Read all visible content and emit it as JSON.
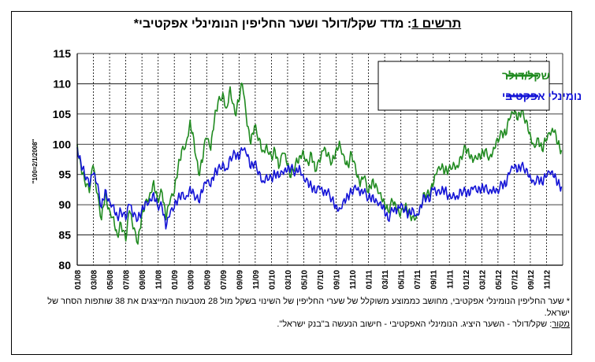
{
  "chart_data": {
    "type": "line",
    "title_prefix": "תרשים 1",
    "title": ": מדד שקל/דולר ושער החליפין הנומינלי אפקטיבי*",
    "ylabel": "\"100=2/1/2008\"",
    "ylim": [
      80,
      115
    ],
    "yticks": [
      80,
      85,
      90,
      95,
      100,
      105,
      110,
      115
    ],
    "x_tick_labels": [
      "01/08",
      "03/08",
      "05/08",
      "07/08",
      "09/08",
      "11/08",
      "01/09",
      "03/09",
      "05/09",
      "07/09",
      "09/09",
      "11/09",
      "01/10",
      "03/10",
      "05/10",
      "07/10",
      "09/10",
      "11/10",
      "01/11",
      "03/11",
      "05/11",
      "07/11",
      "09/11",
      "11/11",
      "01/12",
      "03/12",
      "05/12",
      "07/12",
      "09/12",
      "11/12"
    ],
    "x_period": [
      "01/08",
      "12/12"
    ],
    "grid": {
      "vertical": "dashed",
      "horizontal": "solid"
    },
    "legend_position": "top-right",
    "series": [
      {
        "name": "שקל/דולר",
        "color": "#1f8a1f",
        "points": [
          [
            0,
            100
          ],
          [
            0.3,
            96.5
          ],
          [
            0.6,
            94
          ],
          [
            1,
            92
          ],
          [
            1.3,
            96.5
          ],
          [
            1.6,
            92
          ],
          [
            2,
            87.5
          ],
          [
            2.3,
            92
          ],
          [
            2.6,
            89.5
          ],
          [
            3,
            88
          ],
          [
            3.3,
            85
          ],
          [
            3.6,
            87
          ],
          [
            4,
            84
          ],
          [
            4.3,
            89
          ],
          [
            4.6,
            86
          ],
          [
            5,
            83.5
          ],
          [
            5.3,
            88
          ],
          [
            5.6,
            90.5
          ],
          [
            6,
            92
          ],
          [
            6.3,
            94
          ],
          [
            6.6,
            91
          ],
          [
            7,
            92
          ],
          [
            7.3,
            87.5
          ],
          [
            7.6,
            90
          ],
          [
            8,
            92
          ],
          [
            8.3,
            96
          ],
          [
            8.6,
            99
          ],
          [
            9,
            100.5
          ],
          [
            9.3,
            104
          ],
          [
            9.6,
            101
          ],
          [
            10,
            95
          ],
          [
            10.3,
            97
          ],
          [
            10.6,
            101
          ],
          [
            11,
            99
          ],
          [
            11.3,
            104
          ],
          [
            11.6,
            107
          ],
          [
            12,
            108.5
          ],
          [
            12.3,
            106
          ],
          [
            12.6,
            109.5
          ],
          [
            13,
            105
          ],
          [
            13.3,
            107
          ],
          [
            13.6,
            110
          ],
          [
            14,
            103
          ],
          [
            14.3,
            100
          ],
          [
            14.6,
            103
          ],
          [
            15,
            101
          ],
          [
            15.3,
            99
          ],
          [
            15.6,
            100
          ],
          [
            16,
            98
          ],
          [
            16.3,
            99
          ],
          [
            16.6,
            96
          ],
          [
            17,
            98.5
          ],
          [
            17.3,
            96.5
          ],
          [
            17.6,
            94.5
          ],
          [
            18,
            97
          ],
          [
            18.3,
            98
          ],
          [
            18.6,
            99
          ],
          [
            19,
            97
          ],
          [
            19.3,
            98.5
          ],
          [
            19.6,
            95.5
          ],
          [
            20,
            97
          ],
          [
            20.3,
            99
          ],
          [
            20.6,
            98
          ],
          [
            21,
            97
          ],
          [
            21.3,
            99
          ],
          [
            21.6,
            100.5
          ],
          [
            22,
            98
          ],
          [
            22.3,
            96.5
          ],
          [
            22.6,
            98.5
          ],
          [
            23,
            95
          ],
          [
            23.3,
            93
          ],
          [
            23.6,
            94.5
          ],
          [
            24,
            92
          ],
          [
            24.3,
            94
          ],
          [
            24.6,
            93.5
          ],
          [
            25,
            92
          ],
          [
            25.3,
            90.5
          ],
          [
            25.6,
            89
          ],
          [
            26,
            90.5
          ],
          [
            26.3,
            89
          ],
          [
            26.6,
            88
          ],
          [
            27,
            89.5
          ],
          [
            27.3,
            89
          ],
          [
            27.6,
            88
          ],
          [
            28,
            88.5
          ],
          [
            28.3,
            90
          ],
          [
            28.6,
            92
          ],
          [
            29,
            91.5
          ],
          [
            29.3,
            93
          ],
          [
            29.6,
            95
          ],
          [
            30,
            96
          ],
          [
            30.3,
            95.5
          ],
          [
            30.6,
            96
          ],
          [
            31,
            97
          ],
          [
            31.3,
            96.5
          ],
          [
            31.6,
            98
          ],
          [
            32,
            99.5
          ],
          [
            32.3,
            98
          ],
          [
            32.6,
            97
          ],
          [
            33,
            97.5
          ],
          [
            33.3,
            98
          ],
          [
            33.6,
            99
          ],
          [
            34,
            98
          ],
          [
            34.3,
            99.5
          ],
          [
            34.6,
            101
          ],
          [
            35,
            102
          ],
          [
            35.3,
            101.5
          ],
          [
            35.6,
            104
          ],
          [
            36,
            105
          ],
          [
            36.3,
            104
          ],
          [
            36.6,
            105.5
          ],
          [
            37,
            104
          ],
          [
            37.3,
            102
          ],
          [
            37.6,
            100
          ],
          [
            38,
            101
          ],
          [
            38.3,
            99
          ],
          [
            38.6,
            100.5
          ],
          [
            39,
            101.5
          ],
          [
            39.3,
            102
          ],
          [
            39.6,
            100
          ],
          [
            39.9,
            99
          ]
        ]
      },
      {
        "name": "נומינלי אפקטיבי",
        "color": "#1414d6",
        "points": [
          [
            0,
            99.5
          ],
          [
            0.3,
            97
          ],
          [
            0.6,
            95
          ],
          [
            1,
            93
          ],
          [
            1.3,
            95
          ],
          [
            1.6,
            93.5
          ],
          [
            2,
            89.5
          ],
          [
            2.3,
            92.5
          ],
          [
            2.6,
            91
          ],
          [
            3,
            90
          ],
          [
            3.3,
            88
          ],
          [
            3.6,
            89
          ],
          [
            4,
            87.5
          ],
          [
            4.3,
            90
          ],
          [
            4.6,
            88
          ],
          [
            5,
            87.5
          ],
          [
            5.3,
            89
          ],
          [
            5.6,
            90.5
          ],
          [
            6,
            91
          ],
          [
            6.3,
            92
          ],
          [
            6.6,
            90
          ],
          [
            7,
            89.5
          ],
          [
            7.3,
            86
          ],
          [
            7.6,
            88
          ],
          [
            8,
            89.5
          ],
          [
            8.3,
            91
          ],
          [
            8.6,
            92
          ],
          [
            9,
            91.5
          ],
          [
            9.3,
            93
          ],
          [
            9.6,
            92
          ],
          [
            10,
            90.5
          ],
          [
            10.3,
            92
          ],
          [
            10.6,
            93.5
          ],
          [
            11,
            93
          ],
          [
            11.3,
            95
          ],
          [
            11.6,
            96
          ],
          [
            12,
            97
          ],
          [
            12.3,
            96
          ],
          [
            12.6,
            98
          ],
          [
            13,
            98.5
          ],
          [
            13.3,
            97.5
          ],
          [
            13.6,
            99
          ],
          [
            14,
            98
          ],
          [
            14.3,
            96
          ],
          [
            14.6,
            97
          ],
          [
            15,
            95.5
          ],
          [
            15.3,
            94
          ],
          [
            15.6,
            95
          ],
          [
            16,
            94.5
          ],
          [
            16.3,
            95
          ],
          [
            16.6,
            94.5
          ],
          [
            17,
            95
          ],
          [
            17.3,
            95.5
          ],
          [
            17.6,
            96
          ],
          [
            18,
            95.5
          ],
          [
            18.3,
            96.5
          ],
          [
            18.6,
            95
          ],
          [
            19,
            94
          ],
          [
            19.3,
            93
          ],
          [
            19.6,
            92
          ],
          [
            20,
            92.5
          ],
          [
            20.3,
            91.5
          ],
          [
            20.6,
            92
          ],
          [
            21,
            91
          ],
          [
            21.3,
            90
          ],
          [
            21.6,
            89.5
          ],
          [
            22,
            91
          ],
          [
            22.3,
            91.5
          ],
          [
            22.6,
            92
          ],
          [
            23,
            92.5
          ],
          [
            23.3,
            91.5
          ],
          [
            23.6,
            92
          ],
          [
            24,
            91
          ],
          [
            24.3,
            91.5
          ],
          [
            24.6,
            91
          ],
          [
            25,
            90.5
          ],
          [
            25.3,
            89.5
          ],
          [
            25.6,
            87.5
          ],
          [
            26,
            89
          ],
          [
            26.3,
            88.5
          ],
          [
            26.6,
            89.5
          ],
          [
            27,
            89
          ],
          [
            27.3,
            88.5
          ],
          [
            27.6,
            89.5
          ],
          [
            28,
            88.5
          ],
          [
            28.3,
            90
          ],
          [
            28.6,
            91.5
          ],
          [
            29,
            90.5
          ],
          [
            29.3,
            92.5
          ],
          [
            29.6,
            91.5
          ],
          [
            30,
            92
          ],
          [
            30.3,
            92.5
          ],
          [
            30.6,
            91.5
          ],
          [
            31,
            92
          ],
          [
            31.3,
            91.5
          ],
          [
            31.6,
            92.5
          ],
          [
            32,
            92
          ],
          [
            32.3,
            91.5
          ],
          [
            32.6,
            92.5
          ],
          [
            33,
            92
          ],
          [
            33.3,
            92.5
          ],
          [
            33.6,
            93
          ],
          [
            34,
            92.5
          ],
          [
            34.3,
            93
          ],
          [
            34.6,
            92.5
          ],
          [
            35,
            93.5
          ],
          [
            35.3,
            93
          ],
          [
            35.6,
            95
          ],
          [
            36,
            96
          ],
          [
            36.3,
            95.5
          ],
          [
            36.6,
            96.5
          ],
          [
            37,
            96
          ],
          [
            37.3,
            95
          ],
          [
            37.6,
            94
          ],
          [
            38,
            94.5
          ],
          [
            38.3,
            93.5
          ],
          [
            38.6,
            94.5
          ],
          [
            39,
            95
          ],
          [
            39.3,
            94.5
          ],
          [
            39.6,
            93.5
          ],
          [
            39.9,
            93
          ]
        ]
      }
    ]
  },
  "footnote": "* שער החליפין הנומינלי אפקטיבי, מחושב כממוצע משוקלל של שערי החליפין של השינוי בשקל מול 28 מטבעות המייצגים את 38 שותפות הסחר של ישראל.",
  "source_label": "מקור",
  "source_text": ": שקל/דולר - השער היציג. הנומינלי האפקטיבי - חישוב הנעשה ב\"בנק ישראל\"."
}
